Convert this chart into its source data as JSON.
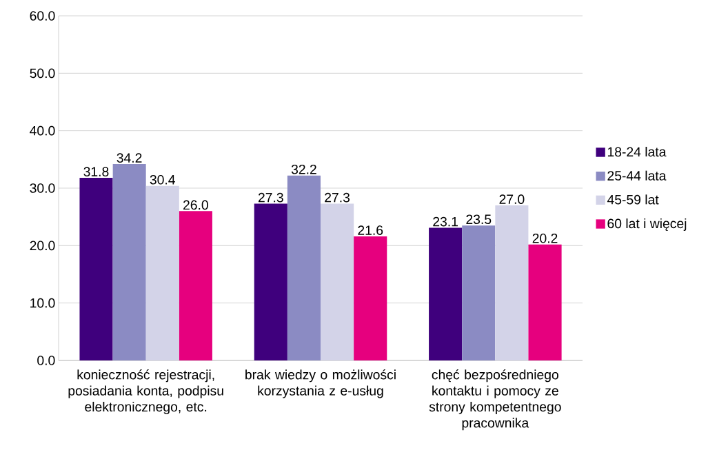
{
  "chart_data": {
    "type": "bar",
    "categories": [
      "konieczność rejestracji, posiadania konta, podpisu elektronicznego, etc.",
      "brak wiedzy o możliwości korzystania z e-usług",
      "chęć bezpośredniego kontaktu i pomocy ze strony kompetentnego pracownika"
    ],
    "series": [
      {
        "name": "18-24 lata",
        "color": "#3f007d",
        "values": [
          31.8,
          27.3,
          23.1
        ],
        "value_labels": [
          "31.8",
          "27.3",
          "23.1"
        ]
      },
      {
        "name": "25-44 lata",
        "color": "#8b8bc3",
        "values": [
          34.2,
          32.2,
          23.5
        ],
        "value_labels": [
          "34.2",
          "32.2",
          "23.5"
        ]
      },
      {
        "name": "45-59 lat",
        "color": "#d3d3e8",
        "values": [
          30.4,
          27.3,
          27.0
        ],
        "value_labels": [
          "30.4",
          "27.3",
          "27.0"
        ]
      },
      {
        "name": "60 lat i więcej",
        "color": "#e6007e",
        "values": [
          26.0,
          21.6,
          20.2
        ],
        "value_labels": [
          "26.0",
          "21.6",
          "20.2"
        ]
      }
    ],
    "ylim": [
      0,
      60
    ],
    "yticks": [
      {
        "value": 0,
        "label": "0.0"
      },
      {
        "value": 10,
        "label": "10.0"
      },
      {
        "value": 20,
        "label": "20.0"
      },
      {
        "value": 30,
        "label": "30.0"
      },
      {
        "value": 40,
        "label": "40.0"
      },
      {
        "value": 50,
        "label": "50.0"
      },
      {
        "value": 60,
        "label": "60.0"
      }
    ],
    "grid": "y",
    "legend": "right"
  }
}
